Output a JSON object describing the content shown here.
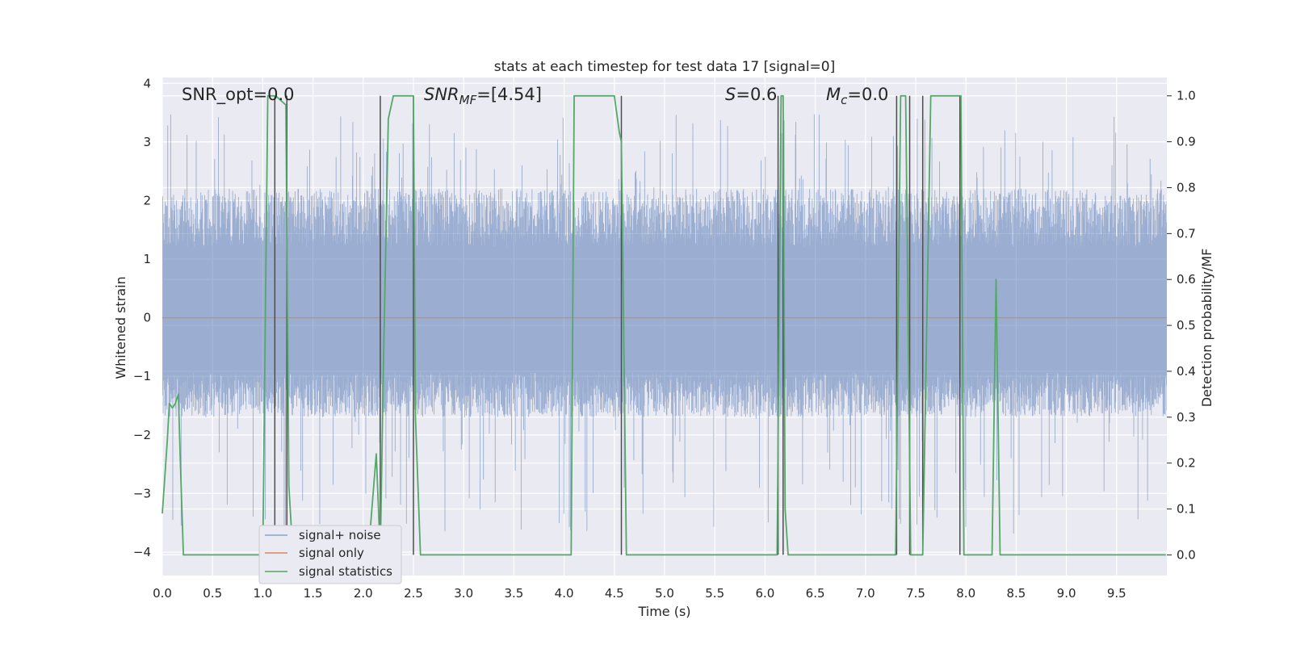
{
  "chart_data": {
    "type": "line",
    "title": "stats at each timestep for test data 17 [signal=0]",
    "xlabel": "Time (s)",
    "ylabel_left": "Whitened strain",
    "ylabel_right": "Detection probability/MF",
    "xlim": [
      0.0,
      10.0
    ],
    "ylim_left": [
      -4.4,
      4.1
    ],
    "ylim_right": [
      -0.045,
      1.04
    ],
    "x_ticks": [
      0.0,
      0.5,
      1.0,
      1.5,
      2.0,
      2.5,
      3.0,
      3.5,
      4.0,
      4.5,
      5.0,
      5.5,
      6.0,
      6.5,
      7.0,
      7.5,
      8.0,
      8.5,
      9.0,
      9.5
    ],
    "x_tick_labels": [
      "0.0",
      "0.5",
      "1.0",
      "1.5",
      "2.0",
      "2.5",
      "3.0",
      "3.5",
      "4.0",
      "4.5",
      "5.0",
      "5.5",
      "6.0",
      "6.5",
      "7.0",
      "7.5",
      "8.0",
      "8.5",
      "9.0",
      "9.5"
    ],
    "y_left_ticks": [
      -4,
      -3,
      -2,
      -1,
      0,
      1,
      2,
      3,
      4
    ],
    "y_left_tick_labels": [
      "−4",
      "−3",
      "−2",
      "−1",
      "0",
      "1",
      "2",
      "3",
      "4"
    ],
    "y_right_ticks": [
      0.0,
      0.1,
      0.2,
      0.3,
      0.4,
      0.5,
      0.6,
      0.7,
      0.8,
      0.9,
      1.0
    ],
    "y_right_tick_labels": [
      "0.0",
      "0.1",
      "0.2",
      "0.3",
      "0.4",
      "0.5",
      "0.6",
      "0.7",
      "0.8",
      "0.9",
      "1.0"
    ],
    "grid": true,
    "legend_position": "lower-left",
    "annotations": {
      "snr_opt": "SNR_opt=0.0",
      "snr_mf_base": "SNR",
      "snr_mf_sub": "MF",
      "snr_mf_value": "=[4.54]",
      "s_sym": "S",
      "s_value": "=0.6",
      "mc_sym": "M",
      "mc_sub": "c",
      "mc_value": "=0.0"
    },
    "series": [
      {
        "name": "signal+ noise",
        "axis": "left",
        "color": "#4c72b0",
        "style": "noise",
        "envelope": {
          "typical_upper": 2.2,
          "typical_lower": -1.7,
          "max": 3.5,
          "min": -3.7
        }
      },
      {
        "name": "signal only",
        "axis": "left",
        "color": "#dd8452",
        "x": [
          0.0,
          10.0
        ],
        "y": [
          0.0,
          0.0
        ]
      },
      {
        "name": "signal statistics",
        "axis": "right",
        "color": "#55a868",
        "x": [
          0.0,
          0.05,
          0.07,
          0.1,
          0.13,
          0.16,
          0.18,
          0.21,
          0.25,
          1.0,
          1.05,
          1.1,
          1.13,
          1.23,
          1.26,
          1.3,
          2.05,
          2.13,
          2.17,
          2.2,
          2.25,
          2.3,
          2.5,
          2.52,
          2.57,
          4.07,
          4.1,
          4.5,
          4.55,
          4.57,
          4.62,
          6.12,
          6.16,
          6.18,
          6.2,
          6.23,
          7.3,
          7.35,
          7.4,
          7.45,
          7.47,
          7.5,
          7.57,
          7.65,
          7.95,
          7.98,
          8.26,
          8.3,
          8.34,
          9.99
        ],
        "y": [
          0.09,
          0.25,
          0.33,
          0.32,
          0.33,
          0.35,
          0.2,
          0.0,
          0.0,
          0.0,
          1.0,
          1.0,
          1.0,
          0.98,
          0.15,
          0.0,
          0.0,
          0.22,
          0.0,
          0.4,
          0.95,
          1.0,
          1.0,
          0.3,
          0.0,
          0.0,
          1.0,
          1.0,
          0.92,
          0.9,
          0.0,
          0.0,
          1.0,
          1.0,
          0.1,
          0.0,
          0.0,
          1.0,
          1.0,
          0.0,
          0.0,
          0.0,
          0.0,
          1.0,
          1.0,
          0.0,
          0.0,
          0.6,
          0.0,
          0.0
        ]
      }
    ],
    "markers": {
      "color": "#4d4d4d",
      "x": [
        1.12,
        1.24,
        2.17,
        2.5,
        4.57,
        6.13,
        6.18,
        7.31,
        7.44,
        7.57,
        7.94
      ]
    }
  }
}
